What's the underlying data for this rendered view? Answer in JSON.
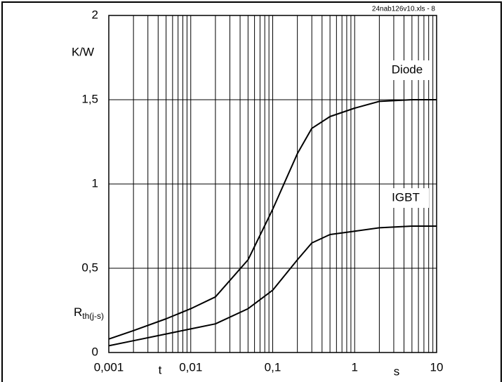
{
  "chart_data": {
    "type": "line",
    "title": "24nab126v10.xls - 8",
    "y_unit": "K/W",
    "y_axis_label": {
      "main": "R",
      "sub": "th(j-s)"
    },
    "x_axis_label": "t",
    "x_unit": "s",
    "x_scale": "log",
    "x": [
      0.001,
      0.002,
      0.005,
      0.01,
      0.02,
      0.05,
      0.1,
      0.2,
      0.3,
      0.5,
      1,
      2,
      5,
      10
    ],
    "series": [
      {
        "name": "Diode",
        "color": "#000000",
        "values": [
          0.08,
          0.13,
          0.2,
          0.26,
          0.33,
          0.55,
          0.85,
          1.18,
          1.33,
          1.4,
          1.45,
          1.49,
          1.5,
          1.5
        ]
      },
      {
        "name": "IGBT",
        "color": "#000000",
        "values": [
          0.04,
          0.07,
          0.11,
          0.14,
          0.17,
          0.26,
          0.37,
          0.55,
          0.65,
          0.7,
          0.72,
          0.74,
          0.75,
          0.75
        ]
      }
    ],
    "xlim": [
      0.001,
      10
    ],
    "xticks": [
      {
        "value": 0.001,
        "label": "0,001"
      },
      {
        "value": 0.01,
        "label": "0,01"
      },
      {
        "value": 0.1,
        "label": "0,1"
      },
      1,
      10
    ],
    "ylim": [
      0,
      2
    ],
    "yticks": [
      0,
      {
        "value": 0.5,
        "label": "0,5"
      },
      1,
      {
        "value": 1.5,
        "label": "1,5"
      },
      2
    ],
    "grid": true,
    "minor_grid": true
  }
}
